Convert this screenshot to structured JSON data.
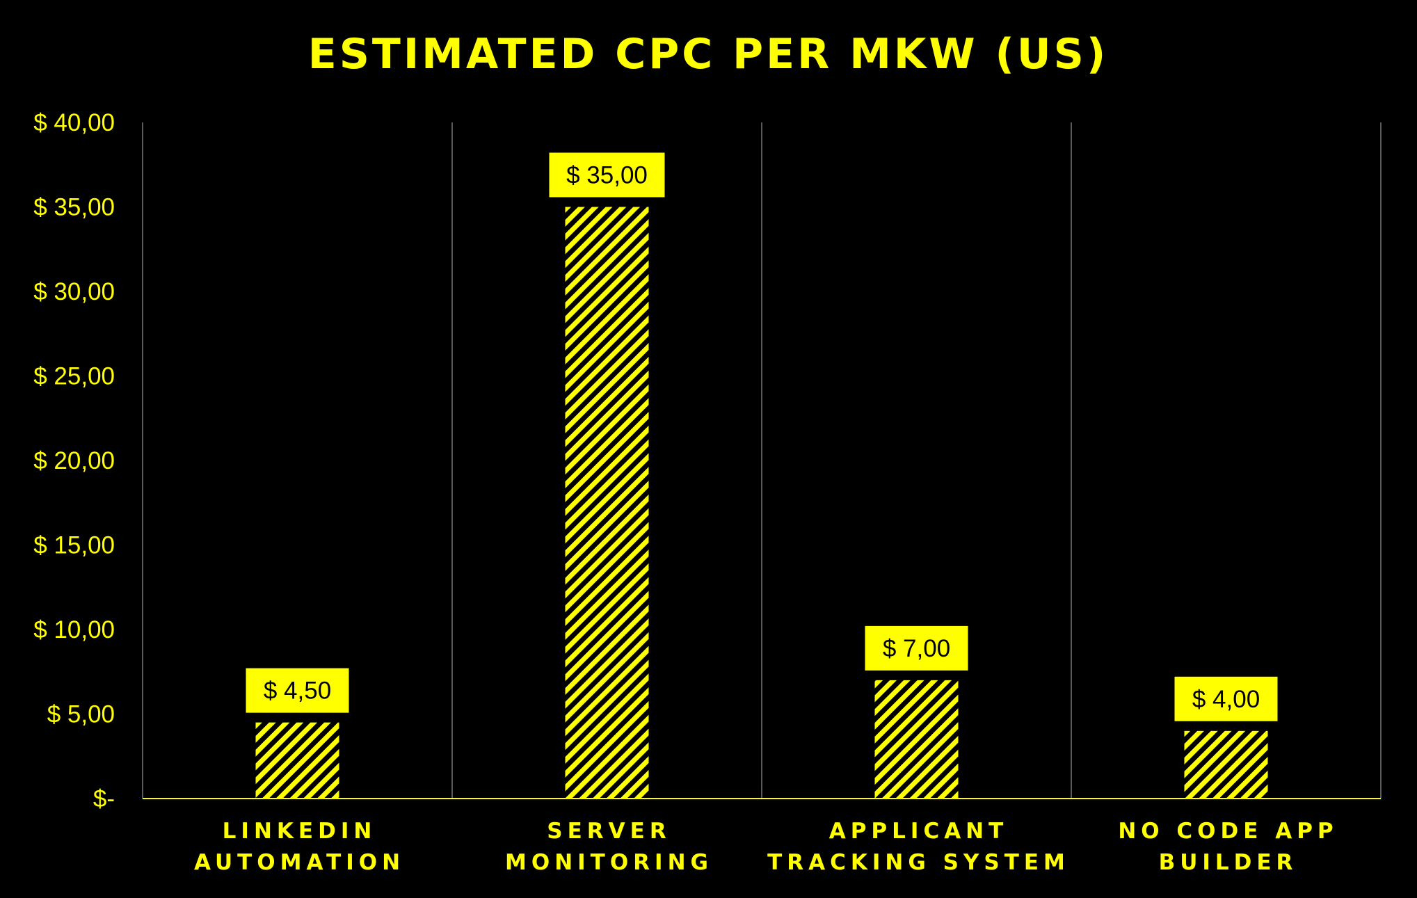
{
  "colors": {
    "background": "#000000",
    "accent": "#FFFF00",
    "gridline": "#5A5A5A",
    "label_text": "#000000"
  },
  "chart_data": {
    "type": "bar",
    "title": "ESTIMATED CPC PER MKW (US)",
    "xlabel": "",
    "ylabel": "",
    "ylim": [
      0,
      40
    ],
    "ytick_step": 5,
    "ytick_labels": [
      "$-",
      "$ 5,00",
      "$ 10,00",
      "$ 15,00",
      "$ 20,00",
      "$ 25,00",
      "$ 30,00",
      "$ 35,00",
      "$ 40,00"
    ],
    "categories": [
      [
        "LINKEDIN",
        "AUTOMATION"
      ],
      [
        "SERVER",
        "MONITORING"
      ],
      [
        "APPLICANT",
        "TRACKING SYSTEM"
      ],
      [
        "NO CODE APP",
        "BUILDER"
      ]
    ],
    "values": [
      4.5,
      35,
      7,
      4
    ],
    "data_labels": [
      "$ 4,50",
      "$ 35,00",
      "$ 7,00",
      "$ 4,00"
    ],
    "bar_fill": "diagonal-stripes",
    "grid": "vertical separators between categories",
    "legend": "none"
  }
}
